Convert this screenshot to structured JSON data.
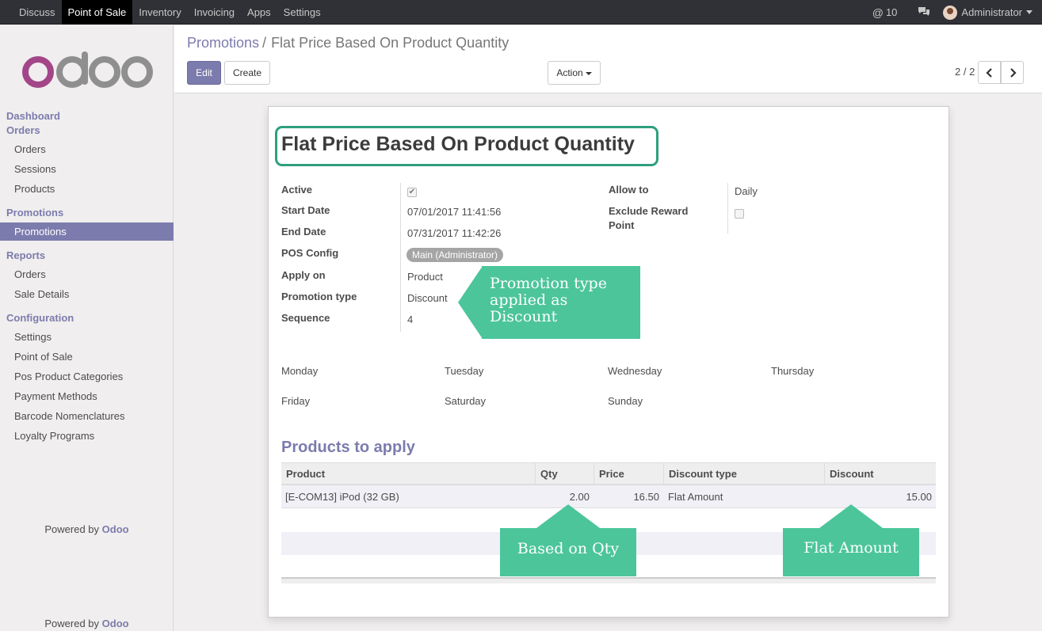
{
  "topbar": {
    "menu": [
      "Discuss",
      "Point of Sale",
      "Inventory",
      "Invoicing",
      "Apps",
      "Settings"
    ],
    "active": "Point of Sale",
    "mention_count": "10",
    "user": "Administrator"
  },
  "sidebar": {
    "logo": "odoo",
    "sections": [
      {
        "title": "Dashboard"
      },
      {
        "title": "Orders",
        "items": [
          "Orders",
          "Sessions",
          "Products"
        ]
      },
      {
        "title": "Promotions",
        "items": [
          "Promotions"
        ]
      },
      {
        "title": "Reports",
        "items": [
          "Orders",
          "Sale Details"
        ]
      },
      {
        "title": "Configuration",
        "items": [
          "Settings",
          "Point of Sale",
          "Pos Product Categories",
          "Payment Methods",
          "Barcode Nomenclatures",
          "Loyalty Programs"
        ]
      }
    ],
    "active_item": "Promotions",
    "powered_prefix": "Powered by",
    "powered_brand": "Odoo"
  },
  "control_panel": {
    "breadcrumb_parent": "Promotions",
    "breadcrumb_sep": "/",
    "breadcrumb_current": "Flat Price Based On Product Quantity",
    "edit_label": "Edit",
    "create_label": "Create",
    "action_label": "Action",
    "pager": "2 / 2"
  },
  "form": {
    "title": "Flat Price Based On Product Quantity",
    "active_label": "Active",
    "start_date_label": "Start Date",
    "start_date": "07/01/2017 11:41:56",
    "end_date_label": "End Date",
    "end_date": "07/31/2017 11:42:26",
    "pos_config_label": "POS Config",
    "pos_config": "Main (Administrator)",
    "apply_on_label": "Apply on",
    "apply_on": "Product",
    "promotion_type_label": "Promotion type",
    "promotion_type": "Discount",
    "sequence_label": "Sequence",
    "sequence": "4",
    "allow_to_label": "Allow to",
    "allow_to": "Daily",
    "exclude_reward_label_1": "Exclude Reward",
    "exclude_reward_label_2": "Point",
    "days": [
      "Monday",
      "Tuesday",
      "Wednesday",
      "Thursday",
      "Friday",
      "Saturday",
      "Sunday"
    ],
    "products_section": "Products to apply",
    "table": {
      "columns": [
        "Product",
        "Qty",
        "Price",
        "Discount type",
        "Discount"
      ],
      "rows": [
        {
          "product": "[E-COM13] iPod (32 GB)",
          "qty": "2.00",
          "price": "16.50",
          "discount_type": "Flat Amount",
          "discount": "15.00"
        }
      ]
    }
  },
  "annotations": {
    "promotion_type_1": "Promotion type",
    "promotion_type_2": "applied as",
    "promotion_type_3": "Discount",
    "qty": "Based on Qty",
    "flat": "Flat Amount"
  },
  "colors": {
    "accent": "#7c7bad",
    "callout": "#4cc59b",
    "title_border": "#2e9f7e",
    "navbar": "#2f3136"
  }
}
